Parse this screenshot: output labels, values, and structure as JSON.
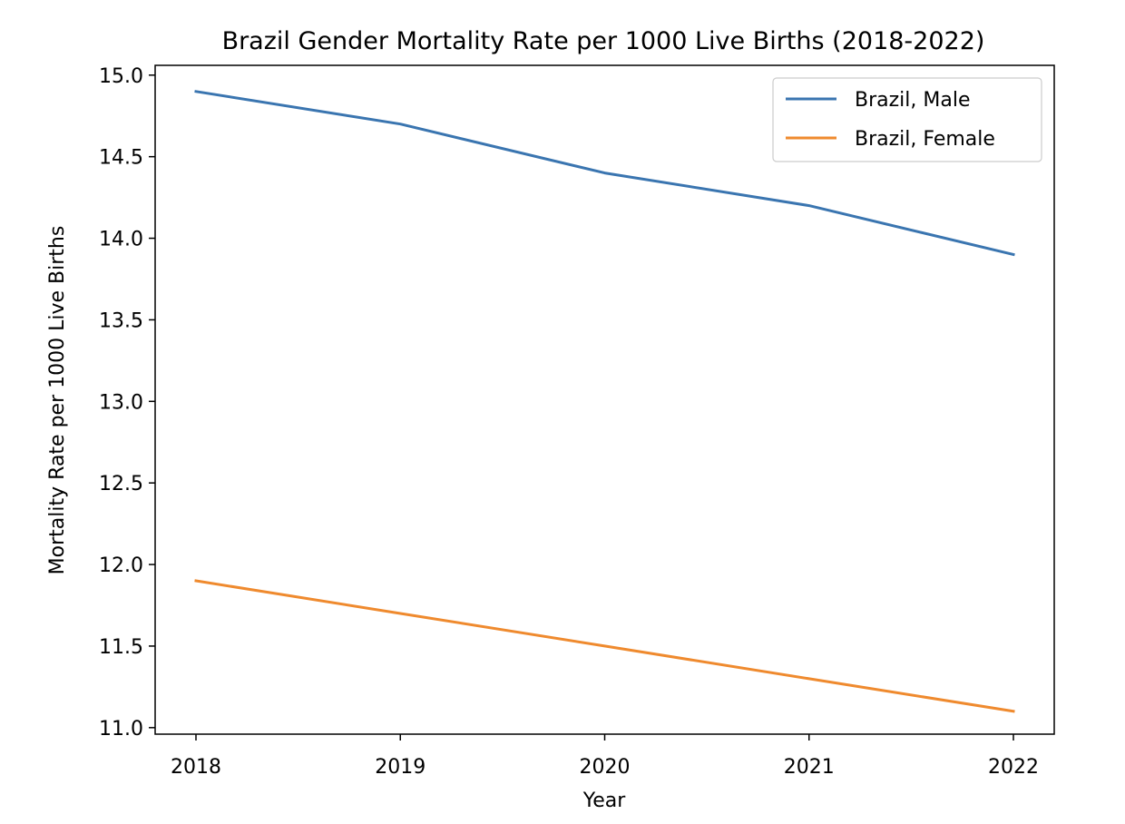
{
  "chart_data": {
    "type": "line",
    "title": "Brazil Gender Mortality Rate per 1000 Live Births (2018-2022)",
    "xlabel": "Year",
    "ylabel": "Mortality Rate per 1000 Live Births",
    "x": [
      2018,
      2019,
      2020,
      2021,
      2022
    ],
    "x_tick_labels": [
      "2018",
      "2019",
      "2020",
      "2021",
      "2022"
    ],
    "ylim": [
      10.96,
      15.06
    ],
    "y_ticks": [
      11.0,
      11.5,
      12.0,
      12.5,
      13.0,
      13.5,
      14.0,
      14.5,
      15.0
    ],
    "y_tick_labels": [
      "11.0",
      "11.5",
      "12.0",
      "12.5",
      "13.0",
      "13.5",
      "14.0",
      "14.5",
      "15.0"
    ],
    "grid": false,
    "legend_position": "top-right",
    "series": [
      {
        "name": "Brazil, Male",
        "color": "#3a75b0",
        "values": [
          14.9,
          14.7,
          14.4,
          14.2,
          13.9
        ]
      },
      {
        "name": "Brazil, Female",
        "color": "#ef8a2e",
        "values": [
          11.9,
          11.7,
          11.5,
          11.3,
          11.1
        ]
      }
    ]
  }
}
